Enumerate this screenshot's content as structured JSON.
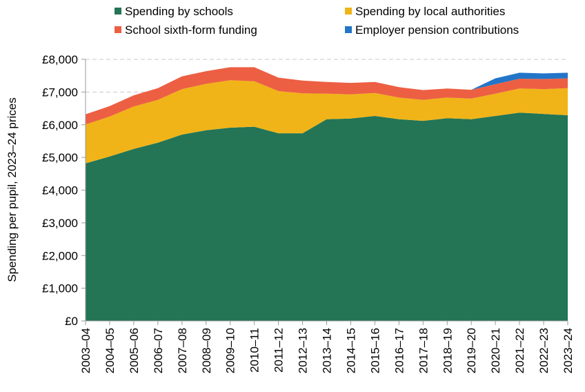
{
  "chart_data": {
    "type": "area",
    "stacked": true,
    "title": "",
    "xlabel": "",
    "ylabel": "Spending per pupil, 2023–24 prices",
    "ylim": [
      0,
      8000
    ],
    "yticks": [
      0,
      1000,
      2000,
      3000,
      4000,
      5000,
      6000,
      7000,
      8000
    ],
    "ytick_labels": [
      "£0",
      "£1,000",
      "£2,000",
      "£3,000",
      "£4,000",
      "£5,000",
      "£6,000",
      "£7,000",
      "£8,000"
    ],
    "grid": "horizontal dashed",
    "legend_position": "top",
    "categories": [
      "2003–04",
      "2004–05",
      "2005–06",
      "2006–07",
      "2007–08",
      "2008–09",
      "2009–10",
      "2010–11",
      "2011–12",
      "2012–13",
      "2013–14",
      "2014–15",
      "2015–16",
      "2016–17",
      "2017–18",
      "2018–19",
      "2019–20",
      "2020–21",
      "2021–22",
      "2022–23",
      "2023–24"
    ],
    "series": [
      {
        "name": "Spending by schools",
        "color": "#237556",
        "values": [
          4820,
          5030,
          5260,
          5450,
          5700,
          5830,
          5910,
          5940,
          5740,
          5740,
          6170,
          6190,
          6270,
          6170,
          6120,
          6200,
          6170,
          6270,
          6370,
          6330,
          6290
        ]
      },
      {
        "name": "Spending by local authorities",
        "color": "#f0b419",
        "values": [
          1190,
          1220,
          1300,
          1310,
          1390,
          1420,
          1450,
          1390,
          1290,
          1220,
          780,
          740,
          700,
          660,
          640,
          630,
          630,
          680,
          740,
          760,
          830
        ]
      },
      {
        "name": "School sixth-form funding",
        "color": "#ed5f43",
        "values": [
          310,
          320,
          340,
          360,
          390,
          390,
          400,
          430,
          410,
          390,
          360,
          350,
          340,
          320,
          300,
          280,
          270,
          290,
          300,
          310,
          300
        ]
      },
      {
        "name": "Employer pension contributions",
        "color": "#2375c8",
        "values": [
          0,
          0,
          0,
          0,
          0,
          0,
          0,
          0,
          0,
          0,
          0,
          0,
          0,
          0,
          0,
          0,
          0,
          180,
          180,
          170,
          170
        ]
      }
    ]
  }
}
